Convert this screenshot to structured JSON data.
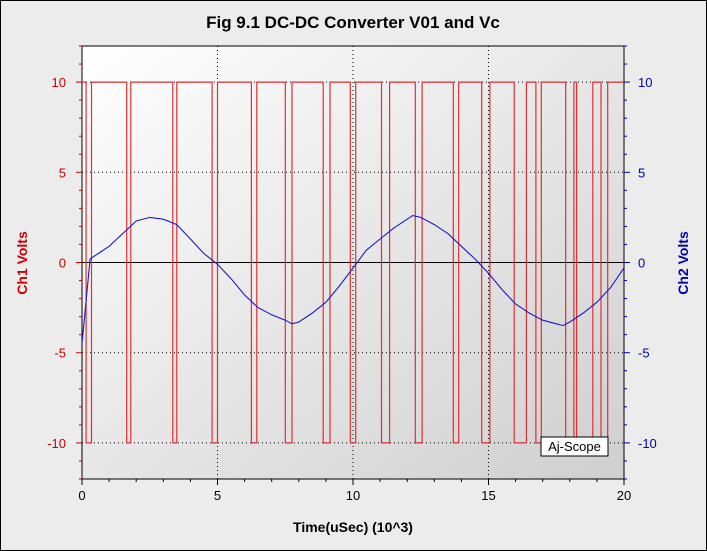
{
  "chart_data": {
    "type": "line",
    "title": "Fig 9.1 DC-DC Converter V01 and Vc",
    "xlabel": "Time(uSec) (10^3)",
    "ylabel_left": "Ch1 Volts",
    "ylabel_right": "Ch2 Volts",
    "xlim": [
      0,
      20
    ],
    "ylim_left": [
      -12,
      12
    ],
    "ylim_right": [
      -12,
      12
    ],
    "x_ticks": [
      "0",
      "5",
      "10",
      "15",
      "20"
    ],
    "y_ticks_left": [
      "10",
      "5",
      "0",
      "-5",
      "-10"
    ],
    "y_ticks_right": [
      "10",
      "5",
      "0",
      "-5",
      "-10"
    ],
    "grid": true,
    "watermark": "Aj-Scope",
    "colors": {
      "ch1": "#e03030",
      "ch2": "#1a1acc",
      "left_axis": "#cc0000",
      "right_axis": "#0000aa"
    },
    "series": [
      {
        "axis": "left",
        "levels": [
          10,
          -10
        ],
        "transitions": [
          0.15,
          0.35,
          1.65,
          1.8,
          3.35,
          3.5,
          4.8,
          5.0,
          6.25,
          6.45,
          7.5,
          7.75,
          8.9,
          9.15,
          9.9,
          10.1,
          11.05,
          11.35,
          12.3,
          12.55,
          13.7,
          13.9,
          14.75,
          15.05,
          15.95,
          16.4,
          16.75,
          16.95,
          17.85,
          18.15,
          18.25,
          18.85,
          19.15,
          19.4
        ],
        "initial_level": 10
      },
      {
        "axis": "right",
        "x": [
          0,
          0.3,
          0.6,
          1.0,
          1.5,
          2.0,
          2.5,
          3.0,
          3.5,
          4.0,
          4.5,
          5.0,
          5.5,
          6.0,
          6.5,
          7.0,
          7.5,
          7.75,
          8.0,
          8.5,
          9.0,
          9.5,
          10.0,
          10.5,
          11.0,
          11.5,
          12.0,
          12.2,
          12.5,
          13.0,
          13.5,
          14.0,
          14.5,
          15.0,
          15.5,
          16.0,
          16.5,
          17.0,
          17.5,
          17.75,
          18.0,
          18.5,
          19.0,
          19.5,
          20.0
        ],
        "values": [
          -4.5,
          0.2,
          0.5,
          0.9,
          1.6,
          2.3,
          2.5,
          2.4,
          2.1,
          1.3,
          0.5,
          -0.1,
          -0.9,
          -1.8,
          -2.5,
          -2.9,
          -3.2,
          -3.4,
          -3.3,
          -2.8,
          -2.2,
          -1.3,
          -0.3,
          0.7,
          1.3,
          1.9,
          2.4,
          2.6,
          2.5,
          2.1,
          1.6,
          0.9,
          0.2,
          -0.6,
          -1.5,
          -2.3,
          -2.8,
          -3.2,
          -3.4,
          -3.5,
          -3.3,
          -2.8,
          -2.2,
          -1.4,
          -0.3
        ]
      }
    ]
  }
}
